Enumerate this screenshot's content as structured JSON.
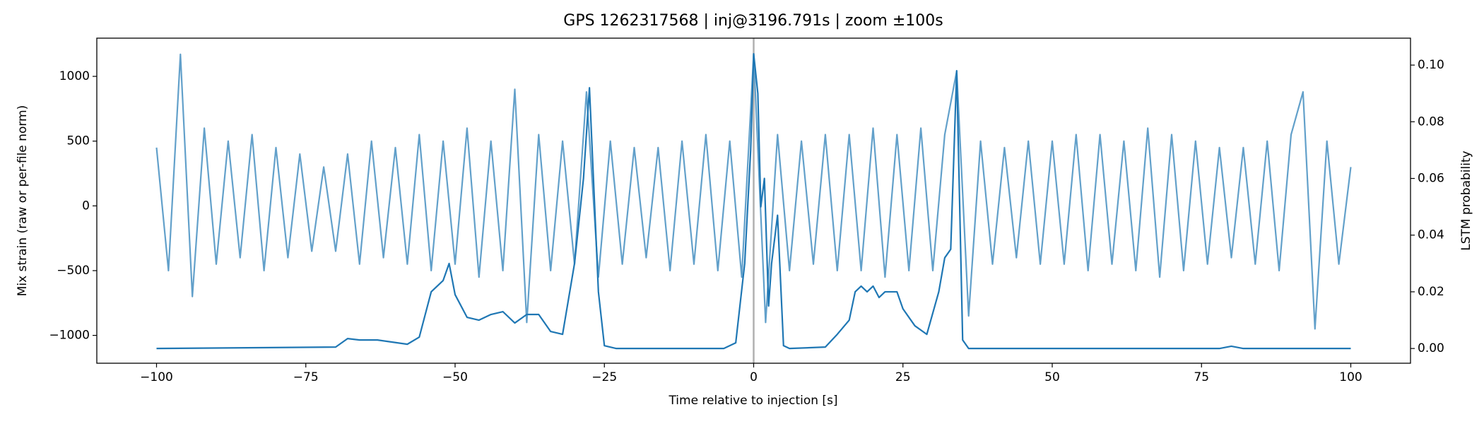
{
  "chart_data": {
    "type": "line",
    "title": "GPS 1262317568 | inj@3196.791s | zoom ±100s",
    "xlabel": "Time relative to injection [s]",
    "ylabel": "Mix strain (raw or per-file norm)",
    "y2label": "LSTM probability",
    "xlim": [
      -110,
      110
    ],
    "ylim": [
      -1215,
      1295
    ],
    "y2lim": [
      -0.0052,
      0.1095
    ],
    "xticks": [
      {
        "value": -100,
        "label": "−100"
      },
      {
        "value": -75,
        "label": "−75"
      },
      {
        "value": -50,
        "label": "−50"
      },
      {
        "value": -25,
        "label": "−25"
      },
      0,
      25,
      50,
      75,
      100
    ],
    "yticks": [
      {
        "value": -1000,
        "label": "−1000"
      },
      {
        "value": -500,
        "label": "−500"
      },
      0,
      500,
      1000
    ],
    "y2ticks": [
      {
        "value": 0,
        "label": "0.00"
      },
      {
        "value": 0.02,
        "label": "0.02"
      },
      {
        "value": 0.04,
        "label": "0.04"
      },
      {
        "value": 0.06,
        "label": "0.06"
      },
      {
        "value": 0.08,
        "label": "0.08"
      },
      {
        "value": 0.1,
        "label": "0.10"
      }
    ],
    "vline_x": 0,
    "vline_color": "#b0b0b0",
    "series": [
      {
        "color": "#62a0ca",
        "x": [
          -100,
          -98,
          -96,
          -94,
          -92,
          -90,
          -88,
          -86,
          -84,
          -82,
          -80,
          -78,
          -76,
          -74,
          -72,
          -70,
          -68,
          -66,
          -64,
          -62,
          -60,
          -58,
          -56,
          -54,
          -52,
          -50,
          -48,
          -46,
          -44,
          -42,
          -40,
          -38,
          -36,
          -34,
          -32,
          -30,
          -28,
          -26,
          -24,
          -22,
          -20,
          -18,
          -16,
          -14,
          -12,
          -10,
          -8,
          -6,
          -4,
          -2,
          0,
          2,
          4,
          6,
          8,
          10,
          12,
          14,
          16,
          18,
          20,
          22,
          24,
          26,
          28,
          30,
          32,
          34,
          36,
          38,
          40,
          42,
          44,
          46,
          48,
          50,
          52,
          54,
          56,
          58,
          60,
          62,
          64,
          66,
          68,
          70,
          72,
          74,
          76,
          78,
          80,
          82,
          84,
          86,
          88,
          90,
          92,
          94,
          96,
          98,
          100
        ],
        "values": [
          450,
          -500,
          1170,
          -700,
          600,
          -450,
          500,
          -400,
          550,
          -500,
          450,
          -400,
          400,
          -350,
          300,
          -350,
          400,
          -450,
          500,
          -400,
          450,
          -450,
          550,
          -500,
          500,
          -450,
          600,
          -550,
          500,
          -500,
          900,
          -900,
          550,
          -500,
          500,
          -450,
          880,
          -550,
          500,
          -450,
          450,
          -400,
          450,
          -500,
          500,
          -450,
          550,
          -500,
          500,
          -550,
          1170,
          -900,
          550,
          -500,
          500,
          -450,
          550,
          -500,
          550,
          -500,
          600,
          -550,
          550,
          -500,
          600,
          -500,
          550,
          1040,
          -850,
          500,
          -450,
          450,
          -400,
          500,
          -450,
          500,
          -450,
          550,
          -500,
          550,
          -450,
          500,
          -500,
          600,
          -550,
          550,
          -500,
          500,
          -450,
          450,
          -400,
          450,
          -450,
          500,
          -500,
          550,
          880,
          -950,
          500,
          -450,
          300
        ]
      },
      {
        "color": "#1f77b4",
        "axis": "y2",
        "x": [
          -100,
          -70,
          -68,
          -66,
          -63,
          -58,
          -56,
          -54,
          -52,
          -51,
          -50,
          -48,
          -46,
          -44,
          -42,
          -40,
          -38,
          -36,
          -34,
          -32,
          -30,
          -28.5,
          -27.5,
          -26,
          -25,
          -23,
          -5,
          -3,
          -1.5,
          -0.5,
          0,
          0.7,
          1.2,
          1.8,
          2.5,
          3,
          4,
          5,
          6,
          12,
          14,
          16,
          17,
          18,
          19,
          20,
          21,
          22,
          23,
          24,
          25,
          27,
          29,
          31,
          32,
          33,
          34,
          35,
          36,
          78,
          80,
          82,
          100
        ],
        "values": [
          0,
          0.0005,
          0.0035,
          0.003,
          0.003,
          0.0015,
          0.004,
          0.02,
          0.024,
          0.03,
          0.019,
          0.011,
          0.01,
          0.012,
          0.013,
          0.009,
          0.012,
          0.012,
          0.006,
          0.005,
          0.03,
          0.06,
          0.092,
          0.02,
          0.001,
          0,
          0,
          0.002,
          0.03,
          0.07,
          0.104,
          0.09,
          0.05,
          0.06,
          0.015,
          0.03,
          0.047,
          0.001,
          0,
          0.0005,
          0.005,
          0.01,
          0.02,
          0.022,
          0.02,
          0.022,
          0.018,
          0.02,
          0.02,
          0.02,
          0.014,
          0.008,
          0.005,
          0.02,
          0.032,
          0.035,
          0.098,
          0.003,
          0,
          0,
          0.0008,
          0,
          0
        ]
      }
    ]
  }
}
